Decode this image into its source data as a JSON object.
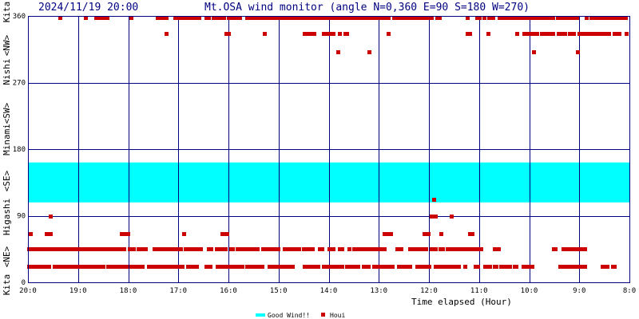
{
  "header": {
    "timestamp": "2024/11/19 20:00",
    "title": "Mt.OSA wind monitor (angle N=0,360 E=90 S=180 W=270)"
  },
  "y_side_labels": [
    "Kita",
    "<NE>",
    "Higashi",
    "<SE>",
    "Minami",
    "<SW>",
    "Nishi",
    "<NW>",
    "Kita"
  ],
  "legend": {
    "good_wind": "Good Wind!!",
    "houi": "Houi"
  },
  "colors": {
    "frame": "#000080",
    "grid": "#000080",
    "title": "#000080",
    "good_wind": "#00ffff",
    "points": "#cc0000",
    "text": "#000000"
  },
  "chart_data": {
    "type": "scatter",
    "xlabel": "Time elapsed (Hour)",
    "x_tick_labels": [
      "20:0",
      "19:0",
      "18:0",
      "17:0",
      "16:0",
      "15:0",
      "14:0",
      "13:0",
      "12:0",
      "11:0",
      "10:0",
      "9:0",
      "8:0"
    ],
    "y_tick_labels": [
      "0",
      "90",
      "180",
      "270",
      "360"
    ],
    "xlim": [
      0,
      12
    ],
    "ylim": [
      0,
      360
    ],
    "x_reversed_time": true,
    "grid": true,
    "legend_position": "bottom-center",
    "good_wind_band": [
      108,
      162
    ],
    "series": [
      {
        "name": "Houi",
        "segments": [
          {
            "y": 22,
            "ranges": [
              [
                0.02,
                0.24
              ],
              [
                0.28,
                0.44
              ],
              [
                0.52,
                0.82
              ],
              [
                0.82,
                1.5
              ],
              [
                1.6,
                1.96
              ],
              [
                2.05,
                2.3
              ],
              [
                2.4,
                3.1
              ],
              [
                3.18,
                3.4
              ],
              [
                3.55,
                3.66
              ],
              [
                3.78,
                4.3
              ],
              [
                4.36,
                4.7
              ],
              [
                4.82,
                5.0
              ],
              [
                5.05,
                5.3
              ],
              [
                5.52,
                5.82
              ],
              [
                5.9,
                6.26
              ],
              [
                6.36,
                6.6
              ],
              [
                6.7,
                6.8
              ],
              [
                6.9,
                7.0
              ],
              [
                7.08,
                7.3
              ],
              [
                7.4,
                7.66
              ],
              [
                7.76,
                7.9
              ],
              [
                7.96,
                8.02
              ],
              [
                8.12,
                8.44
              ],
              [
                8.5,
                8.62
              ],
              [
                8.72,
                8.76
              ],
              [
                8.92,
                9.0
              ],
              [
                9.12,
                9.22
              ],
              [
                9.3,
                9.36
              ],
              [
                9.44,
                9.5
              ],
              [
                9.52,
                9.62
              ],
              [
                9.7,
                9.76
              ],
              [
                9.88,
                10.06
              ],
              [
                10.62,
                10.74
              ],
              [
                10.74,
                11.12
              ],
              [
                11.46,
                11.58
              ],
              [
                11.66,
                11.72
              ]
            ]
          },
          {
            "y": 45,
            "ranges": [
              [
                0.02,
                0.72
              ],
              [
                0.74,
                1.2
              ],
              [
                1.22,
                1.34
              ],
              [
                1.38,
                1.66
              ],
              [
                1.74,
                1.94
              ],
              [
                2.02,
                2.12
              ],
              [
                2.2,
                2.36
              ],
              [
                2.52,
                2.9
              ],
              [
                2.96,
                3.08
              ],
              [
                3.14,
                3.32
              ],
              [
                3.36,
                3.48
              ],
              [
                3.6,
                3.68
              ],
              [
                3.76,
                3.94
              ],
              [
                4.04,
                4.1
              ],
              [
                4.18,
                4.34
              ],
              [
                4.4,
                4.62
              ],
              [
                4.68,
                4.86
              ],
              [
                4.9,
                5.02
              ],
              [
                5.12,
                5.3
              ],
              [
                5.36,
                5.44
              ],
              [
                5.5,
                5.72
              ],
              [
                5.82,
                5.88
              ],
              [
                6.0,
                6.1
              ],
              [
                6.22,
                6.3
              ],
              [
                6.4,
                6.44
              ],
              [
                6.5,
                6.6
              ],
              [
                6.68,
                6.9
              ],
              [
                6.92,
                7.1
              ],
              [
                7.36,
                7.46
              ],
              [
                7.62,
                7.96
              ],
              [
                8.04,
                8.14
              ],
              [
                8.22,
                8.3
              ],
              [
                8.36,
                8.52
              ],
              [
                8.54,
                9.06
              ],
              [
                9.3,
                9.4
              ],
              [
                10.48,
                10.54
              ],
              [
                10.68,
                10.8
              ],
              [
                10.8,
                11.14
              ]
            ]
          },
          {
            "y": 66,
            "ranges": [
              [
                0.04,
                0.06
              ],
              [
                0.36,
                0.48
              ],
              [
                1.86,
                2.0
              ],
              [
                3.1,
                3.14
              ],
              [
                3.88,
                3.98
              ],
              [
                7.1,
                7.24
              ],
              [
                7.9,
                8.0
              ],
              [
                8.24,
                8.28
              ],
              [
                8.82,
                8.9
              ]
            ]
          },
          {
            "y": 90,
            "ranges": [
              [
                0.44,
                0.48
              ],
              [
                8.04,
                8.16
              ],
              [
                8.44,
                8.48
              ]
            ]
          },
          {
            "y": 112,
            "ranges": [
              [
                8.09,
                8.11
              ]
            ]
          },
          {
            "y": 312,
            "ranges": [
              [
                6.18,
                6.22
              ],
              [
                6.8,
                6.84
              ],
              [
                10.08,
                10.12
              ],
              [
                10.96,
                11.0
              ]
            ]
          },
          {
            "y": 336,
            "ranges": [
              [
                2.76,
                2.8
              ],
              [
                3.95,
                4.0
              ],
              [
                4.72,
                4.76
              ],
              [
                5.52,
                5.7
              ],
              [
                5.9,
                6.08
              ],
              [
                6.22,
                6.26
              ],
              [
                6.32,
                6.38
              ],
              [
                7.18,
                7.22
              ],
              [
                8.76,
                8.84
              ],
              [
                9.18,
                9.22
              ],
              [
                9.76,
                9.8
              ],
              [
                9.9,
                10.0
              ],
              [
                10.02,
                10.18
              ],
              [
                10.24,
                10.5
              ],
              [
                10.58,
                10.74
              ],
              [
                10.8,
                10.9
              ],
              [
                11.0,
                11.14
              ],
              [
                11.2,
                11.24
              ],
              [
                11.28,
                11.3
              ],
              [
                11.36,
                11.6
              ],
              [
                11.7,
                11.8
              ],
              [
                11.94,
                11.98
              ]
            ]
          },
          {
            "y": 358,
            "ranges": [
              [
                0.64,
                0.68
              ],
              [
                1.14,
                1.18
              ],
              [
                1.36,
                1.6
              ],
              [
                2.06,
                2.1
              ],
              [
                2.58,
                2.78
              ],
              [
                2.94,
                3.06
              ],
              [
                3.1,
                3.26
              ],
              [
                3.32,
                3.44
              ],
              [
                3.56,
                3.64
              ],
              [
                3.7,
                3.8
              ],
              [
                3.86,
                3.92
              ],
              [
                4.0,
                4.1
              ],
              [
                4.18,
                4.26
              ],
              [
                4.36,
                5.18
              ],
              [
                5.2,
                5.38
              ],
              [
                5.44,
                5.56
              ],
              [
                5.6,
                6.88
              ],
              [
                6.92,
                7.22
              ],
              [
                7.3,
                7.4
              ],
              [
                7.46,
                7.56
              ],
              [
                7.6,
                8.06
              ],
              [
                8.16,
                8.22
              ],
              [
                8.76,
                8.8
              ],
              [
                8.96,
                9.04
              ],
              [
                9.1,
                9.12
              ],
              [
                9.2,
                9.24
              ],
              [
                9.28,
                9.32
              ],
              [
                9.4,
                9.44
              ],
              [
                9.48,
                10.5
              ],
              [
                10.56,
                10.84
              ],
              [
                10.9,
                10.98
              ],
              [
                11.14,
                11.18
              ],
              [
                11.24,
                11.94
              ]
            ]
          }
        ]
      }
    ]
  }
}
